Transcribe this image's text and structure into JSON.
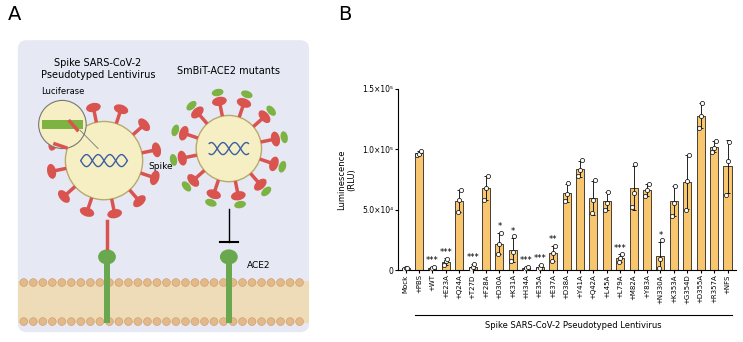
{
  "panels": [
    "A",
    "B"
  ],
  "diagram": {
    "virus_label": "Spike SARS-CoV-2\nPseudotyped Lentivirus",
    "inset_label": "Luciferase",
    "spike_label": "Spike",
    "decoy_label": "SmBiT-ACE2 mutants",
    "receptor_label": "ACE2"
  },
  "chart_data": {
    "type": "bar",
    "categories": [
      "Mock",
      "+PBS",
      "+WT",
      "+E23A",
      "+Q24A",
      "+T27D",
      "+F28A",
      "+D30A",
      "+K31A",
      "+H34A",
      "+E35A",
      "+E37A",
      "+D38A",
      "+Y41A",
      "+Q42A",
      "+L45A",
      "+L79A",
      "+M82A",
      "+Y83A",
      "+N330A",
      "+K353A",
      "+G354D",
      "+D355A",
      "+R357A",
      "+NFS"
    ],
    "values": [
      1500,
      97000,
      2000,
      7000,
      57000,
      3000,
      68000,
      22000,
      17000,
      1500,
      2500,
      14000,
      64000,
      84000,
      60000,
      57000,
      10000,
      68000,
      66000,
      12000,
      57000,
      73000,
      128000,
      102000,
      86000
    ],
    "errors": [
      700,
      2000,
      1000,
      2800,
      9000,
      2300,
      10000,
      9000,
      10000,
      1000,
      1800,
      6000,
      7500,
      6500,
      14000,
      7500,
      3000,
      18000,
      5000,
      11500,
      12500,
      22000,
      10000,
      4500,
      22000
    ],
    "replicates": [
      [
        800,
        1500,
        2200
      ],
      [
        95000,
        96500,
        99000
      ],
      [
        1000,
        2000,
        3000
      ],
      [
        4000,
        7500,
        9500
      ],
      [
        48000,
        58000,
        66000
      ],
      [
        1000,
        2500,
        5500
      ],
      [
        58000,
        68000,
        78000
      ],
      [
        13000,
        22000,
        31000
      ],
      [
        8000,
        15000,
        28000
      ],
      [
        500,
        1500,
        2500
      ],
      [
        1000,
        2000,
        4500
      ],
      [
        8000,
        14000,
        20000
      ],
      [
        57000,
        63000,
        72000
      ],
      [
        78000,
        83000,
        91000
      ],
      [
        47000,
        58000,
        75000
      ],
      [
        50000,
        56000,
        65000
      ],
      [
        7000,
        10000,
        13000
      ],
      [
        52000,
        64000,
        88000
      ],
      [
        61000,
        66000,
        71000
      ],
      [
        2000,
        9000,
        25000
      ],
      [
        45000,
        56000,
        70000
      ],
      [
        50000,
        74000,
        95000
      ],
      [
        118000,
        128000,
        138000
      ],
      [
        98000,
        101000,
        107000
      ],
      [
        62000,
        90000,
        106000
      ]
    ],
    "significance": [
      null,
      null,
      "***",
      "***",
      null,
      "***",
      null,
      "*",
      "*",
      "***",
      "***",
      "**",
      null,
      null,
      null,
      null,
      "***",
      null,
      null,
      "*",
      null,
      null,
      null,
      null,
      null
    ],
    "color": "#f7c66e",
    "ylabel": "Luminescence\n(RLU)",
    "ylim": [
      0,
      150000
    ],
    "yticks": [
      0,
      {
        "value": 50000,
        "label": "5.0×10⁴"
      },
      {
        "value": 100000,
        "label": "1.0×10⁵"
      },
      {
        "value": 150000,
        "label": "1.5×10⁵"
      }
    ],
    "group": {
      "label": "Spike SARS-CoV-2 Pseudotyped Lentivirus",
      "from": "+PBS",
      "to": "+NFS"
    },
    "grid": false
  }
}
